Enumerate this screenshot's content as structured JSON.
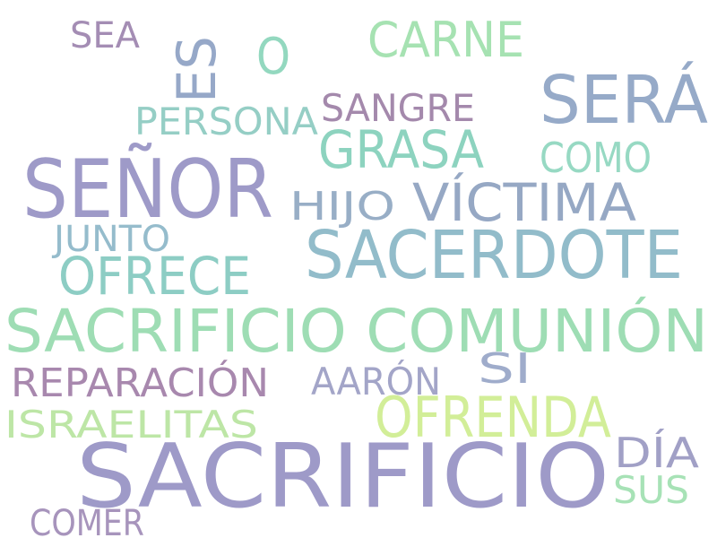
{
  "words": [
    {
      "text": "SACRIFICIO",
      "color": "#9E9AC8"
    },
    {
      "text": "SEÑOR",
      "color": "#9E9AC8"
    },
    {
      "text": "SACERDOTE",
      "color": "#92BCCA"
    },
    {
      "text": "SACRIFICIO COMUNIÓN",
      "color": "#9EDDB4"
    },
    {
      "text": "SERÁ",
      "color": "#96AAC8"
    },
    {
      "text": "OFRENDA",
      "color": "#D2EE98"
    },
    {
      "text": "VÍCTIMA",
      "color": "#96A8C4"
    },
    {
      "text": "CARNE",
      "color": "#A6E2B2"
    },
    {
      "text": "GRASA",
      "color": "#8DD3BF"
    },
    {
      "text": "OFRECE",
      "color": "#8DCDC4"
    },
    {
      "text": "ES",
      "color": "#96A8C8"
    },
    {
      "text": "O",
      "color": "#93D8BF"
    },
    {
      "text": "REPARACIÓN",
      "color": "#A888AE"
    },
    {
      "text": "ISRAELITAS",
      "color": "#BDE6A6"
    },
    {
      "text": "COMO",
      "color": "#97D9C3"
    },
    {
      "text": "PERSONA",
      "color": "#95CEC5"
    },
    {
      "text": "SANGRE",
      "color": "#A489AC"
    },
    {
      "text": "AARÓN",
      "color": "#A3A5C8"
    },
    {
      "text": "DÍA",
      "color": "#A1A0C6"
    },
    {
      "text": "HIJO",
      "color": "#98AEC6"
    },
    {
      "text": "JUNTO",
      "color": "#95BCCC"
    },
    {
      "text": "SI",
      "color": "#9FACCB"
    },
    {
      "text": "SUS",
      "color": "#A7E2B6"
    },
    {
      "text": "COMER",
      "color": "#A794BC"
    },
    {
      "text": "SEA",
      "color": "#A48DB4"
    }
  ]
}
